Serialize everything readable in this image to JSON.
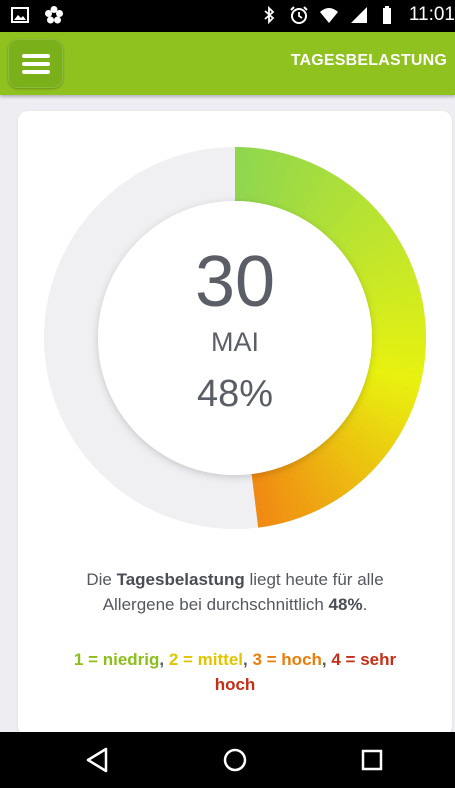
{
  "status_bar": {
    "time": "11:01",
    "icons": [
      "image-icon",
      "flower-icon",
      "bluetooth-icon",
      "alarm-icon",
      "wifi-icon",
      "signal-icon",
      "battery-icon"
    ]
  },
  "app_bar": {
    "title": "TAGESBELASTUNG",
    "menu_icon": "hamburger-menu-icon"
  },
  "gauge": {
    "day": "30",
    "month": "MAI",
    "percent_label": "48%",
    "fill_fraction": 0.48,
    "colors": {
      "start": "#8fd64f",
      "mid": "#e8f20f",
      "end": "#f18a12",
      "track": "#f0f0f3"
    }
  },
  "description": {
    "part1": "Die ",
    "bold1": "Tagesbelastung",
    "part2": " liegt heute für alle",
    "part3": "Allergene bei durchschnittlich ",
    "bold2": "48%",
    "part4": "."
  },
  "legend": {
    "level1": "1 = niedrig",
    "level2": "2 = mittel",
    "level3": "3 = hoch",
    "level4a": "4 = sehr",
    "level4b": "hoch",
    "separator": ", "
  },
  "nav_bar": {
    "icons": [
      "back-icon",
      "home-icon",
      "recents-icon"
    ]
  }
}
